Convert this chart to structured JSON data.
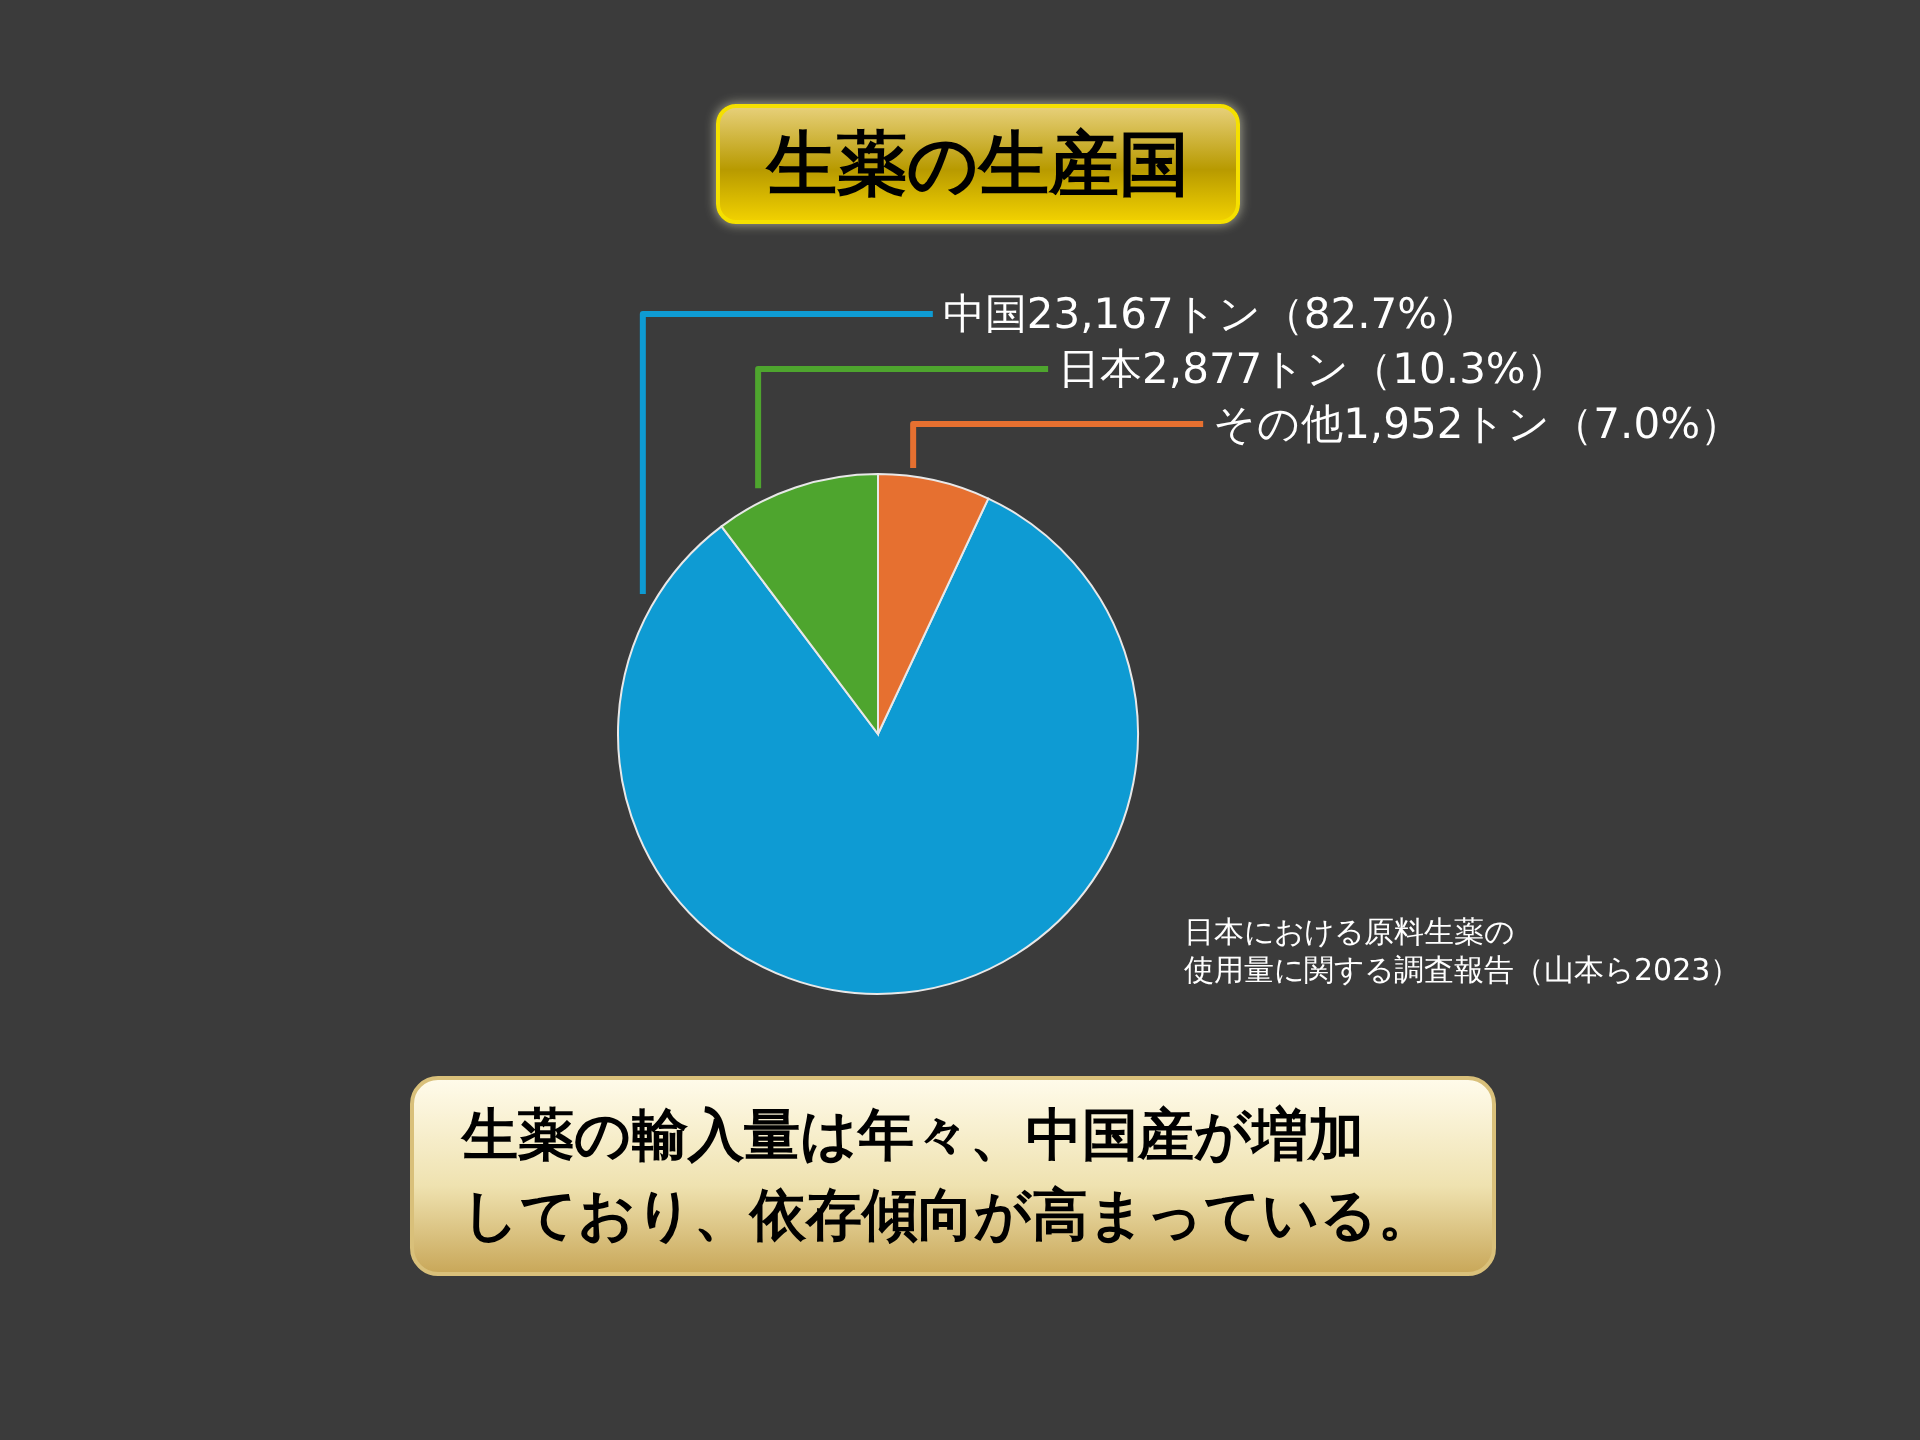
{
  "chart_data": {
    "type": "pie",
    "title": "生薬の生産国",
    "categories": [
      "中国",
      "日本",
      "その他"
    ],
    "values": [
      23167,
      2877,
      1952
    ],
    "colors": [
      "#0e9bd3",
      "#4ea52e",
      "#e67030"
    ],
    "value_labels": [
      "23,167トン（82.7%）",
      "2,877トン（10.3%）",
      "1,952トン（7.0%）"
    ],
    "annotations": [
      "日本における原料生薬の使用量に関する調査報告（山本ら2023）",
      "生薬の輸入量は年々、中国産が増加しており、依存傾向が高まっている。"
    ]
  }
}
